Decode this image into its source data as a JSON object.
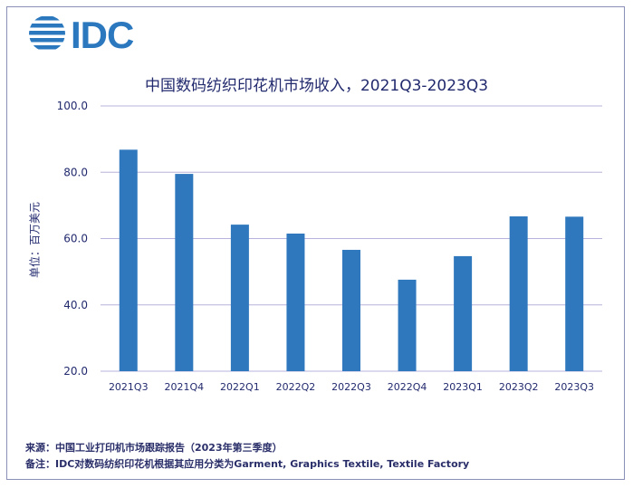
{
  "logo": {
    "text": "IDC"
  },
  "chart_data": {
    "type": "bar",
    "title": "中国数码纺织印花机市场收入，2021Q3-2023Q3",
    "ylabel": "单位：百万美元",
    "xlabel": "",
    "categories": [
      "2021Q3",
      "2021Q4",
      "2022Q1",
      "2022Q2",
      "2022Q3",
      "2022Q4",
      "2023Q1",
      "2023Q2",
      "2023Q3"
    ],
    "values": [
      86.8,
      79.5,
      64.2,
      61.5,
      56.6,
      47.6,
      54.7,
      66.7,
      66.6
    ],
    "ylim": [
      20,
      100
    ],
    "yticks": [
      "20.0",
      "40.0",
      "60.0",
      "80.0",
      "100.0"
    ],
    "ytick_values": [
      20,
      40,
      60,
      80,
      100
    ],
    "grid": true,
    "bar_color": "#2f78bd",
    "grid_color": "#b7b3dc"
  },
  "footnotes": {
    "source": "来源：中国工业打印机市场跟踪报告（2023年第三季度）",
    "note": "备注：IDC对数码纺织印花机根据其应用分类为Garment, Graphics Textile, Textile Factory"
  }
}
